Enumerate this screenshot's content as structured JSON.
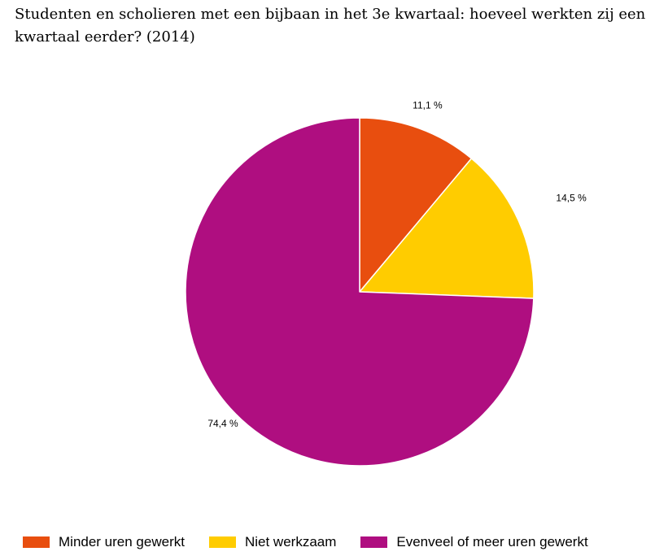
{
  "chart_data": {
    "type": "pie",
    "title": "Studenten en scholieren met een bijbaan in het 3e kwartaal: hoeveel werkten zij een kwartaal eerder? (2014)",
    "categories": [
      "Minder uren gewerkt",
      "Niet werkzaam",
      "Evenveel of meer uren gewerkt"
    ],
    "values": [
      11.1,
      14.5,
      74.4
    ],
    "labels": [
      "11,1 %",
      "14,5 %",
      "74,4 %"
    ],
    "colors": [
      "#E84E0F",
      "#FFCC00",
      "#AF0E80"
    ],
    "start_angle": "12 o'clock",
    "direction": "clockwise",
    "legend_position": "bottom"
  }
}
